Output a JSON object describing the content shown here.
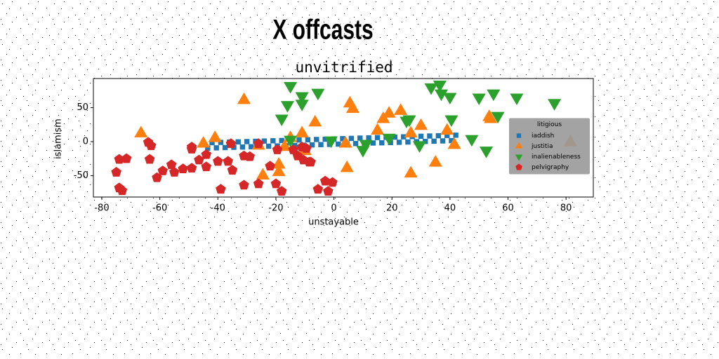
{
  "heading": "X offcasts",
  "chart_data": {
    "type": "scatter",
    "title": "unvitrified",
    "x_label": "unstayable",
    "y_label": "islamism",
    "xlim": [
      -82.9,
      89.4
    ],
    "ylim": [
      -81.4,
      92.8
    ],
    "xticks": [
      -80,
      -60,
      -40,
      -20,
      0,
      20,
      40,
      60,
      80
    ],
    "yticks": [
      -50,
      0,
      50
    ],
    "legend": {
      "title": "litigious",
      "position": "center right"
    },
    "series": [
      {
        "name": "iaddish",
        "color": "#1f77b4",
        "marker": "square",
        "x": [
          -42,
          -39,
          -36,
          -33,
          -30,
          -27,
          -24,
          -21,
          -18,
          -15,
          -12,
          -9,
          -6,
          -3,
          0,
          3,
          6,
          9,
          12,
          15,
          18,
          21,
          24,
          27,
          30,
          33,
          36,
          39,
          42,
          -43.5,
          -40.5,
          -37.5,
          -34.5,
          -31.5,
          -28.5,
          -25.5,
          -22.5,
          -19.5,
          -16.5,
          -13.5,
          -10.5,
          -7.5,
          -4.5,
          -1.5,
          1.5,
          4.5,
          7.5,
          10.5,
          13.5,
          16.5,
          19.5,
          22.5,
          25.5,
          28.5,
          31.5,
          34.5,
          37.5,
          40.5
        ],
        "y": [
          -1.5,
          -1.1,
          -0.7,
          -0.3,
          0.1,
          0.5,
          0.9,
          1.3,
          1.7,
          2,
          2.4,
          2.8,
          3.2,
          3.6,
          4,
          4.4,
          4.8,
          5.2,
          5.6,
          6,
          6.3,
          6.7,
          7.1,
          7.5,
          7.9,
          8.3,
          8.7,
          9.1,
          9.5,
          -9.5,
          -9.1,
          -8.7,
          -8.3,
          -7.9,
          -7.5,
          -7.1,
          -6.7,
          -6.3,
          -6,
          -5.6,
          -5.2,
          -4.8,
          -4.4,
          -4,
          -3.6,
          -3.2,
          -2.8,
          -2.4,
          -2,
          -1.7,
          -1.3,
          -0.9,
          -0.5,
          -0.1,
          0.3,
          0.7,
          1.1,
          1.5
        ]
      },
      {
        "name": "justitia",
        "color": "#ff7f0e",
        "marker": "triangle-up",
        "x": [
          -66.5,
          -45,
          -41,
          -31,
          -26,
          -24.5,
          -19,
          -19,
          -17,
          -15,
          -11,
          -10,
          -6.5,
          4,
          4.5,
          5.5,
          6.5,
          15,
          17,
          19,
          23,
          26.5,
          26.5,
          30,
          35,
          39,
          41.5,
          53.5,
          54,
          81.5
        ],
        "y": [
          12,
          -3,
          5,
          61,
          -6,
          -50,
          -34,
          -45,
          -8,
          5,
          12,
          -14,
          28,
          -3,
          -39,
          56,
          48,
          16,
          33,
          41,
          45,
          -47,
          12,
          23,
          -31,
          16,
          -5,
          36,
          33,
          -1
        ]
      },
      {
        "name": "inalienableness",
        "color": "#2ca02c",
        "marker": "triangle-down",
        "x": [
          -15,
          -16,
          -18,
          -11,
          -11,
          -5.5,
          -15,
          11,
          10,
          29.5,
          25,
          26,
          33.5,
          36.5,
          37,
          40,
          40.5,
          47.5,
          50,
          55,
          52.5,
          56.5,
          63,
          76,
          -1,
          19
        ],
        "y": [
          82,
          54,
          34,
          67,
          56,
          72,
          3,
          -3,
          -12,
          -5,
          31,
          33,
          80,
          84,
          71,
          66,
          33,
          4,
          65,
          71,
          -13,
          38,
          65,
          57,
          2,
          6
        ]
      },
      {
        "name": "pelvigraphy",
        "color": "#d62728",
        "marker": "pentagon",
        "x": [
          -75,
          -74,
          -71.5,
          -74,
          -73,
          -64,
          -63,
          -63.5,
          -61,
          -59,
          -56,
          -55,
          -52,
          -49,
          -49,
          -49,
          -46.5,
          -44,
          -44,
          -40,
          -39,
          -36.5,
          -35.5,
          -35,
          -31,
          -29,
          -31,
          -26,
          -26,
          -22,
          -20,
          -19.5,
          -18,
          -14,
          -12.5,
          -11,
          -10.5,
          -8.5,
          -9.5,
          -8,
          -5.5,
          -3,
          -2,
          -0.5
        ],
        "y": [
          -45,
          -26,
          -25,
          -68,
          -72,
          -1,
          -6,
          -26,
          -53,
          -43,
          -34,
          -45,
          -40,
          -39,
          -8,
          -11,
          -27,
          -37,
          -19,
          -29,
          -70,
          -29,
          -3,
          -42,
          -21,
          -22,
          -64,
          -3,
          -62,
          -36,
          -62,
          -12,
          -73,
          -12,
          -21,
          -8,
          -27,
          -30,
          -10,
          -30,
          -70,
          -58,
          -73,
          -60
        ]
      }
    ]
  }
}
